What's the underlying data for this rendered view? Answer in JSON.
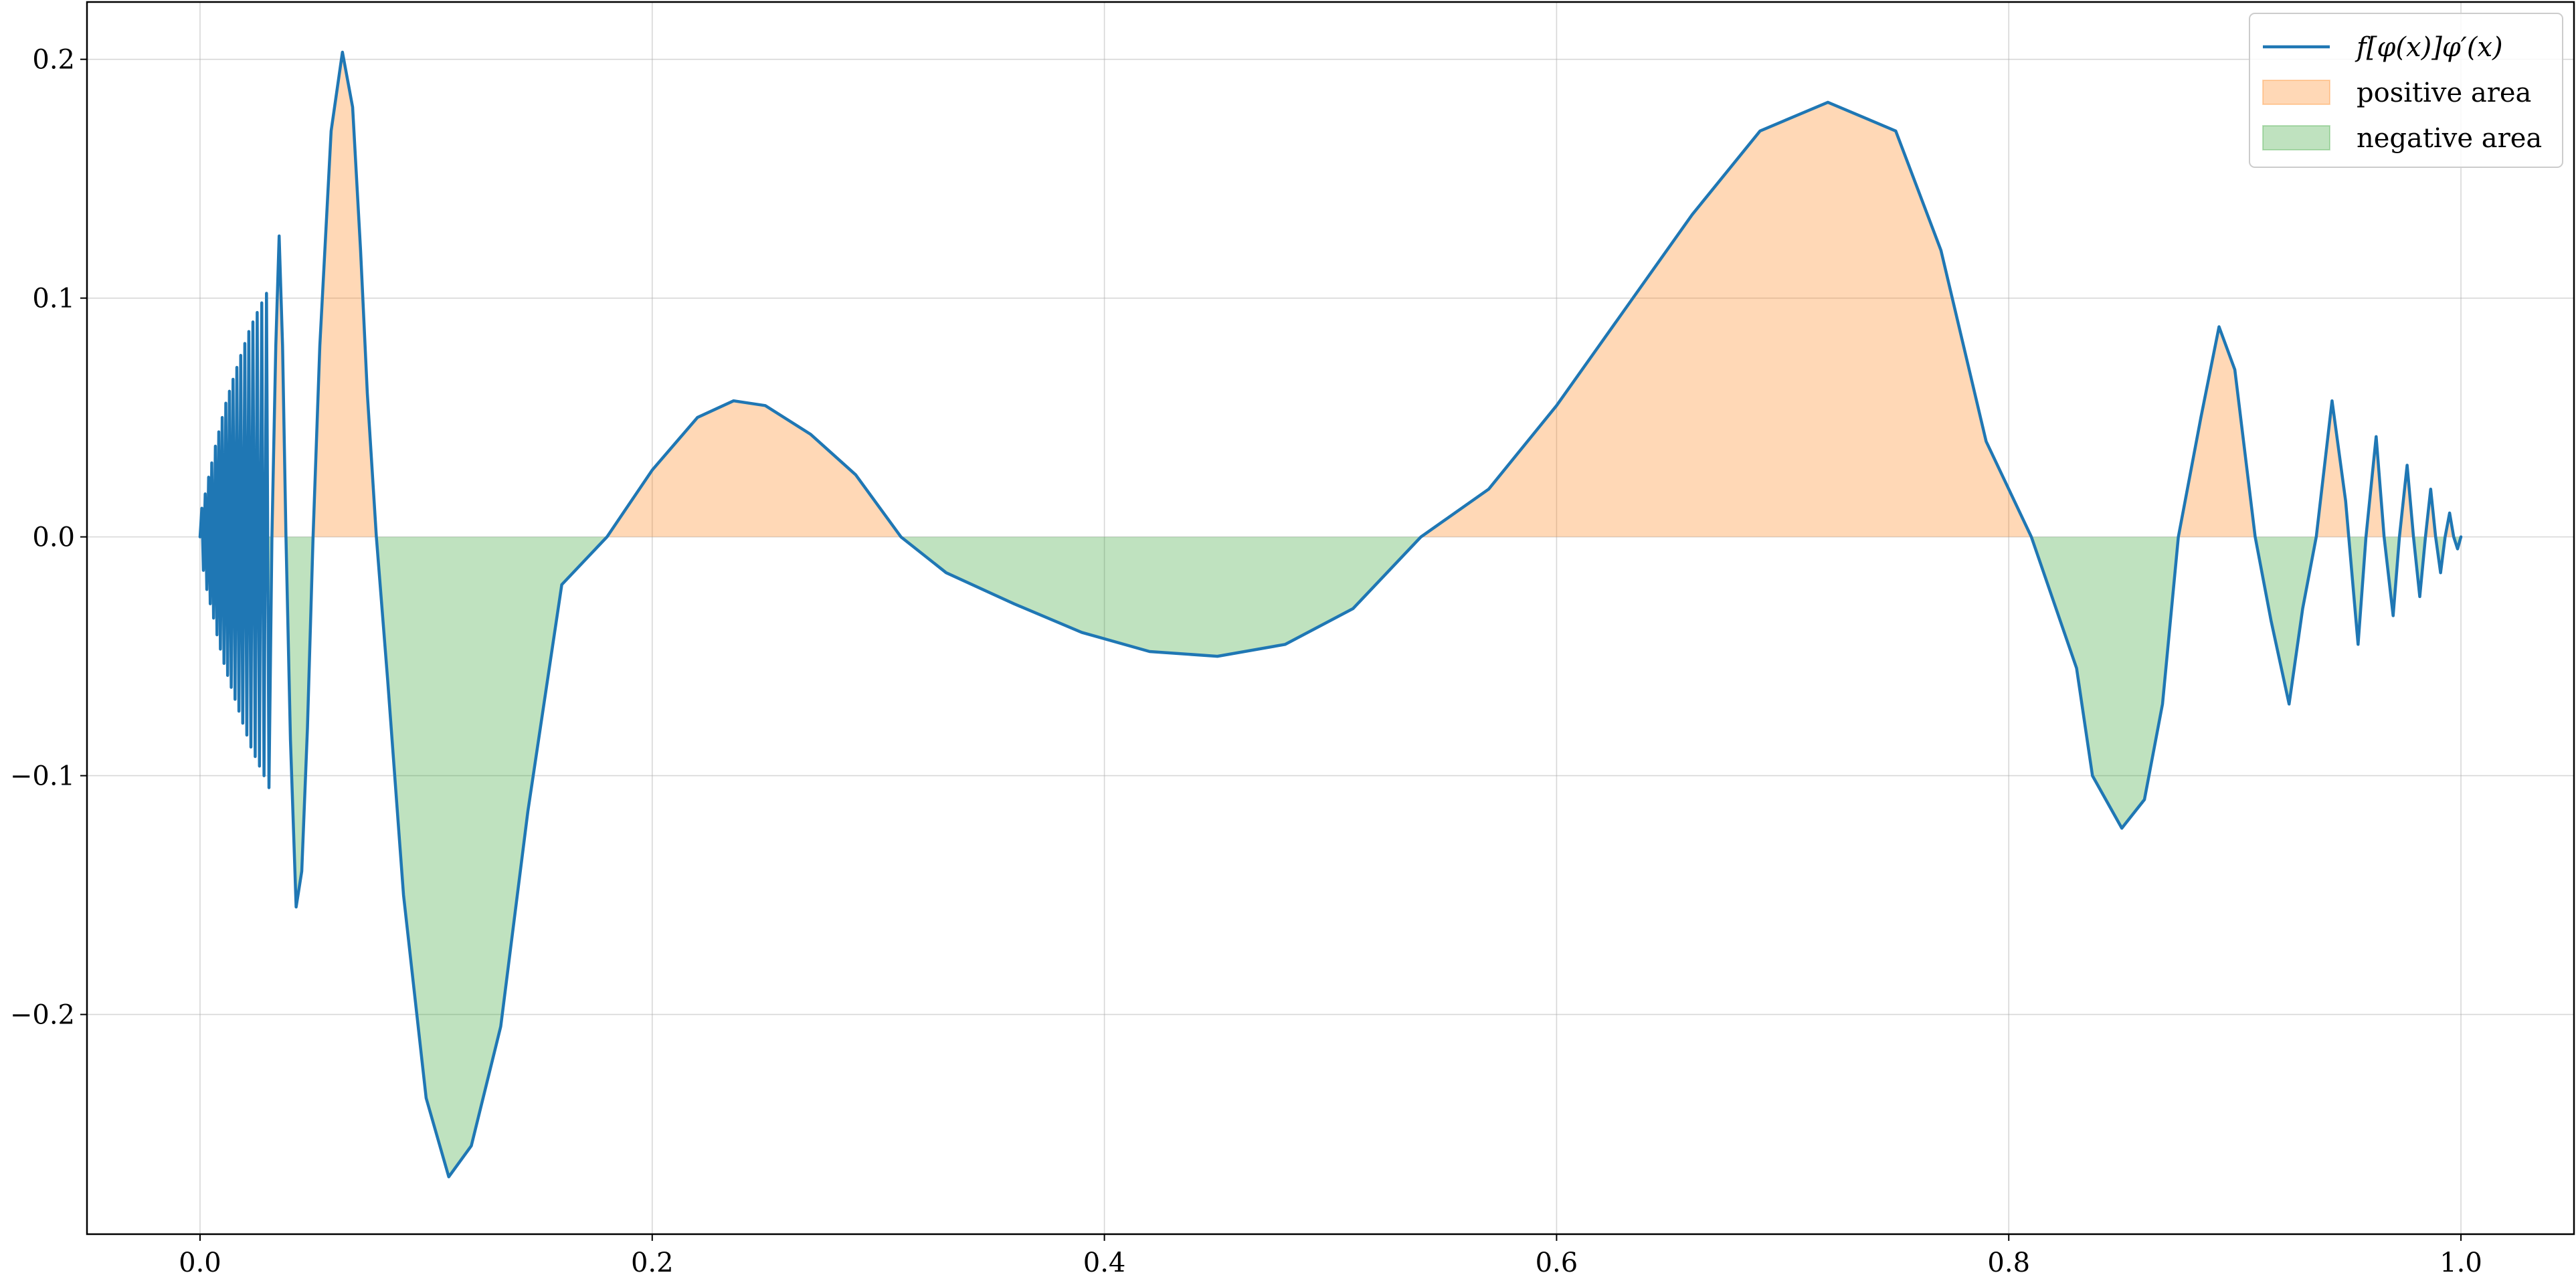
{
  "chart_data": {
    "type": "line",
    "title": "",
    "xlabel": "",
    "ylabel": "",
    "xlim": [
      -0.05,
      1.05
    ],
    "ylim": [
      -0.292,
      0.224
    ],
    "x_ticks": [
      0.0,
      0.2,
      0.4,
      0.6,
      0.8,
      1.0
    ],
    "x_tick_labels": [
      "0.0",
      "0.2",
      "0.4",
      "0.6",
      "0.8",
      "1.0"
    ],
    "y_ticks": [
      -0.2,
      -0.1,
      0.0,
      0.1,
      0.2
    ],
    "y_tick_labels": [
      "−0.2",
      "−0.1",
      "0.0",
      "0.1",
      "0.2"
    ],
    "grid": true,
    "legend_position": "top-right",
    "legend": [
      {
        "label": "f[φ(x)]φ′(x)",
        "kind": "line",
        "color": "#1f77b4"
      },
      {
        "label": "positive area",
        "kind": "patch",
        "color": "#ff7f0e"
      },
      {
        "label": "negative area",
        "kind": "patch",
        "color": "#2ca02c"
      }
    ],
    "series": [
      {
        "color": "#1f77b4",
        "x": [
          0.0,
          0.0008,
          0.0015,
          0.0023,
          0.003,
          0.0038,
          0.0045,
          0.0052,
          0.006,
          0.0068,
          0.0075,
          0.0083,
          0.009,
          0.0098,
          0.0106,
          0.0114,
          0.0122,
          0.013,
          0.0138,
          0.0146,
          0.0155,
          0.0163,
          0.0172,
          0.018,
          0.0189,
          0.0198,
          0.0207,
          0.0216,
          0.0225,
          0.0234,
          0.0244,
          0.0253,
          0.0263,
          0.0273,
          0.0283,
          0.0294,
          0.0305,
          0.0318,
          0.0335,
          0.035,
          0.0365,
          0.038,
          0.04,
          0.0425,
          0.045,
          0.0475,
          0.05,
          0.053,
          0.058,
          0.063,
          0.0675,
          0.071,
          0.074,
          0.078,
          0.083,
          0.09,
          0.1,
          0.11,
          0.12,
          0.133,
          0.145,
          0.16,
          0.18,
          0.2,
          0.22,
          0.236,
          0.25,
          0.27,
          0.29,
          0.31,
          0.33,
          0.36,
          0.39,
          0.42,
          0.45,
          0.48,
          0.51,
          0.54,
          0.57,
          0.6,
          0.63,
          0.66,
          0.69,
          0.72,
          0.75,
          0.77,
          0.79,
          0.81,
          0.83,
          0.837,
          0.85,
          0.86,
          0.868,
          0.875,
          0.885,
          0.893,
          0.9,
          0.909,
          0.916,
          0.924,
          0.93,
          0.936,
          0.943,
          0.949,
          0.9545,
          0.958,
          0.9625,
          0.966,
          0.97,
          0.9728,
          0.9762,
          0.979,
          0.9818,
          0.9843,
          0.9866,
          0.9888,
          0.991,
          0.993,
          0.995,
          0.9968,
          0.9985,
          1.0
        ],
        "y": [
          0.0,
          0.012,
          -0.014,
          0.018,
          -0.022,
          0.025,
          -0.028,
          0.031,
          -0.034,
          0.038,
          -0.041,
          0.044,
          -0.047,
          0.05,
          -0.053,
          0.056,
          -0.058,
          0.061,
          -0.063,
          0.066,
          -0.068,
          0.071,
          -0.073,
          0.076,
          -0.078,
          0.081,
          -0.083,
          0.086,
          -0.088,
          0.09,
          -0.092,
          0.094,
          -0.096,
          0.098,
          -0.1,
          0.102,
          -0.105,
          0.0,
          0.08,
          0.126,
          0.08,
          0.0,
          -0.085,
          -0.155,
          -0.14,
          -0.08,
          0.0,
          0.08,
          0.17,
          0.203,
          0.18,
          0.12,
          0.06,
          0.0,
          -0.06,
          -0.15,
          -0.235,
          -0.268,
          -0.255,
          -0.205,
          -0.115,
          -0.02,
          0.0,
          0.028,
          0.05,
          0.057,
          0.055,
          0.043,
          0.026,
          0.0,
          -0.015,
          -0.028,
          -0.04,
          -0.048,
          -0.05,
          -0.045,
          -0.03,
          0.0,
          0.02,
          0.055,
          0.095,
          0.135,
          0.17,
          0.182,
          0.17,
          0.12,
          0.04,
          0.0,
          -0.055,
          -0.1,
          -0.122,
          -0.11,
          -0.07,
          0.0,
          0.05,
          0.088,
          0.07,
          0.0,
          -0.035,
          -0.07,
          -0.03,
          0.0,
          0.057,
          0.015,
          -0.045,
          0.0,
          0.042,
          0.0,
          -0.033,
          0.0,
          0.03,
          0.0,
          -0.025,
          0.0,
          0.02,
          0.0,
          -0.015,
          0.0,
          0.01,
          0.0,
          -0.005,
          0.0
        ]
      }
    ]
  }
}
